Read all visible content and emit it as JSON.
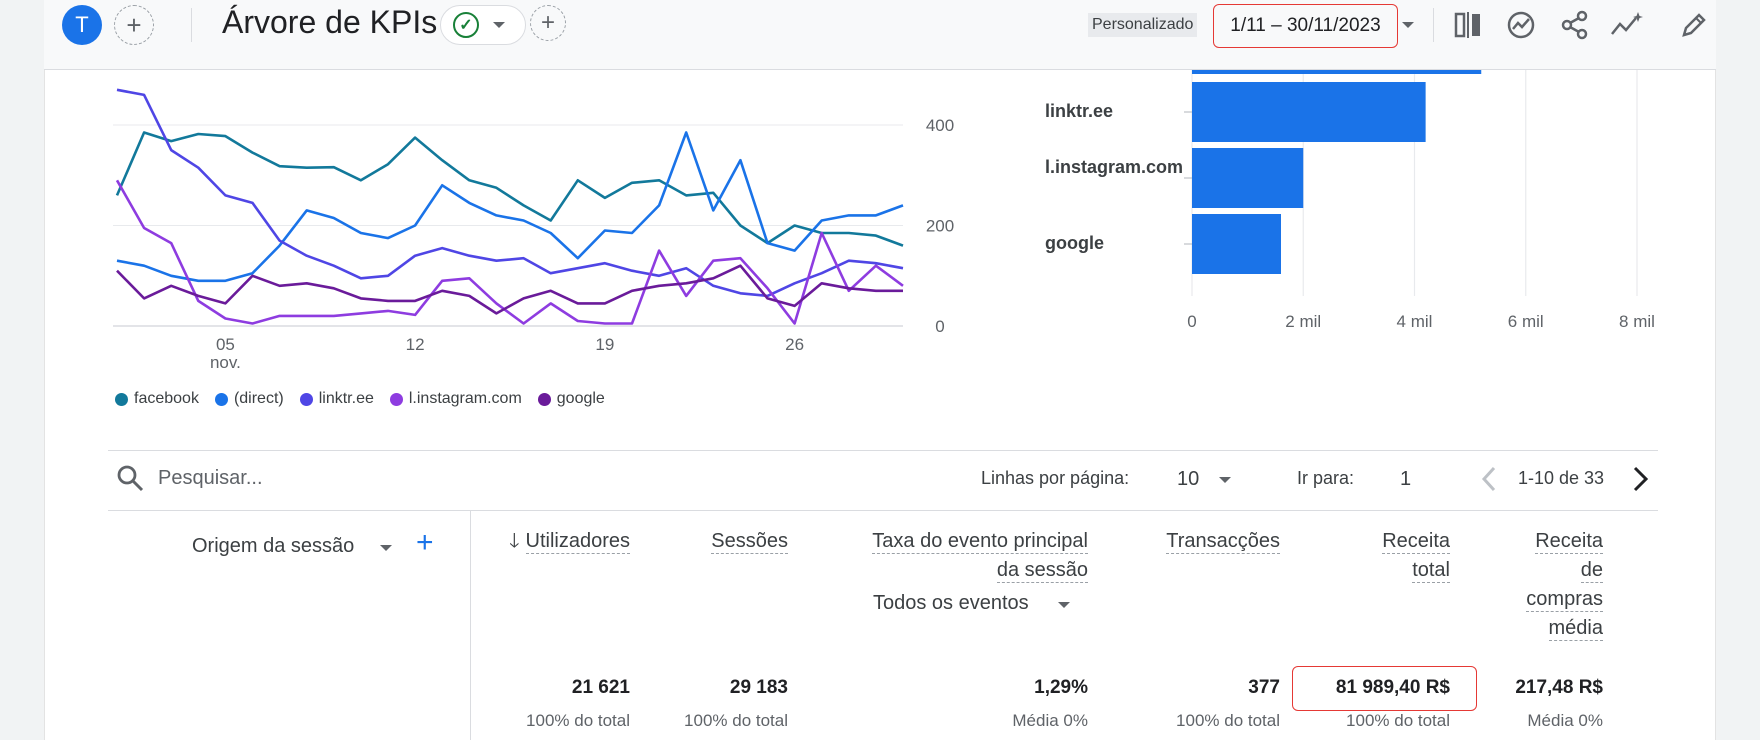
{
  "topbar": {
    "avatar_letter": "T",
    "add_label": "+",
    "title": "Árvore de KPIs",
    "comparison_label": "Personalizado",
    "date_range": "1/11 – 30/11/2023"
  },
  "line_chart": {
    "y_ticks": [
      "400",
      "200",
      "0"
    ],
    "x_ticks": [
      "05",
      "12",
      "19",
      "26"
    ],
    "x_month": "nov."
  },
  "bar_chart": {
    "categories": [
      "linktr.ee",
      "l.instagram.com",
      "google"
    ],
    "x_ticks": [
      "0",
      "2 mil",
      "4 mil",
      "6 mil",
      "8 mil"
    ]
  },
  "legend": [
    {
      "label": "facebook",
      "color": "#12799b"
    },
    {
      "label": "(direct)",
      "color": "#1a73e8"
    },
    {
      "label": "linktr.ee",
      "color": "#4f46e5"
    },
    {
      "label": "l.instagram.com",
      "color": "#8e3ce0"
    },
    {
      "label": "google",
      "color": "#6a1b9a"
    }
  ],
  "chart_data": [
    {
      "type": "line",
      "x_label": "nov.",
      "x": [
        "1",
        "2",
        "3",
        "4",
        "5",
        "6",
        "7",
        "8",
        "9",
        "10",
        "11",
        "12",
        "13",
        "14",
        "15",
        "16",
        "17",
        "18",
        "19",
        "20",
        "21",
        "22",
        "23",
        "24",
        "25",
        "26",
        "27",
        "28",
        "29",
        "30"
      ],
      "ylim": [
        0,
        450
      ],
      "series": [
        {
          "name": "facebook",
          "color": "#12799b",
          "values": [
            260,
            385,
            368,
            382,
            378,
            345,
            318,
            315,
            316,
            290,
            322,
            375,
            330,
            290,
            275,
            240,
            210,
            290,
            255,
            285,
            290,
            260,
            265,
            200,
            165,
            200,
            185,
            185,
            180,
            160
          ]
        },
        {
          "name": "(direct)",
          "color": "#1a73e8",
          "values": [
            130,
            120,
            100,
            90,
            90,
            105,
            160,
            230,
            215,
            185,
            175,
            200,
            280,
            245,
            220,
            210,
            185,
            135,
            190,
            185,
            240,
            385,
            230,
            330,
            165,
            150,
            210,
            220,
            220,
            240
          ]
        },
        {
          "name": "linktr.ee",
          "color": "#4f46e5",
          "values": [
            470,
            460,
            350,
            315,
            260,
            245,
            170,
            140,
            120,
            95,
            100,
            140,
            155,
            140,
            130,
            135,
            105,
            115,
            125,
            110,
            100,
            115,
            80,
            65,
            60,
            85,
            105,
            130,
            125,
            115
          ]
        },
        {
          "name": "l.instagram.com",
          "color": "#8e3ce0",
          "values": [
            290,
            195,
            165,
            50,
            15,
            5,
            20,
            20,
            20,
            25,
            30,
            22,
            90,
            95,
            45,
            5,
            45,
            10,
            5,
            5,
            150,
            60,
            130,
            135,
            75,
            5,
            185,
            70,
            120,
            80
          ]
        },
        {
          "name": "google",
          "color": "#6a1b9a",
          "values": [
            110,
            55,
            80,
            60,
            45,
            100,
            80,
            85,
            75,
            55,
            50,
            50,
            70,
            60,
            25,
            55,
            70,
            45,
            45,
            70,
            80,
            85,
            95,
            120,
            55,
            40,
            85,
            75,
            70,
            70
          ]
        }
      ]
    },
    {
      "type": "bar",
      "orientation": "horizontal",
      "categories": [
        "linktr.ee",
        "l.instagram.com",
        "google"
      ],
      "values": [
        4200,
        2000,
        1600
      ],
      "xlim": [
        0,
        8000
      ],
      "x_ticks": [
        "0",
        "2 mil",
        "4 mil",
        "6 mil",
        "8 mil"
      ]
    }
  ],
  "table": {
    "search_placeholder": "Pesquisar...",
    "rows_per_page_label": "Linhas por página:",
    "rows_per_page_value": "10",
    "goto_label": "Ir para:",
    "goto_value": "1",
    "range_label": "1-10 de 33",
    "dimension_label": "Origem da sessão",
    "add_dimension": "+",
    "columns": {
      "users": "Utilizadores",
      "sessions": "Sessões",
      "rate_line1": "Taxa do evento principal",
      "rate_line2": "da sessão",
      "rate_filter": "Todos os eventos",
      "transactions": "Transacções",
      "revenue_line1": "Receita",
      "revenue_line2": "total",
      "avg_line1": "Receita",
      "avg_line2": "de",
      "avg_line3": "compras",
      "avg_line4": "média"
    },
    "totals": {
      "users": "21 621",
      "sessions": "29 183",
      "rate": "1,29%",
      "transactions": "377",
      "revenue": "81 989,40 R$",
      "avg": "217,48 R$"
    },
    "totals_sub": {
      "users": "100% do total",
      "sessions": "100% do total",
      "rate": "Média 0%",
      "transactions": "100% do total",
      "revenue": "100% do total",
      "avg": "Média 0%"
    }
  }
}
